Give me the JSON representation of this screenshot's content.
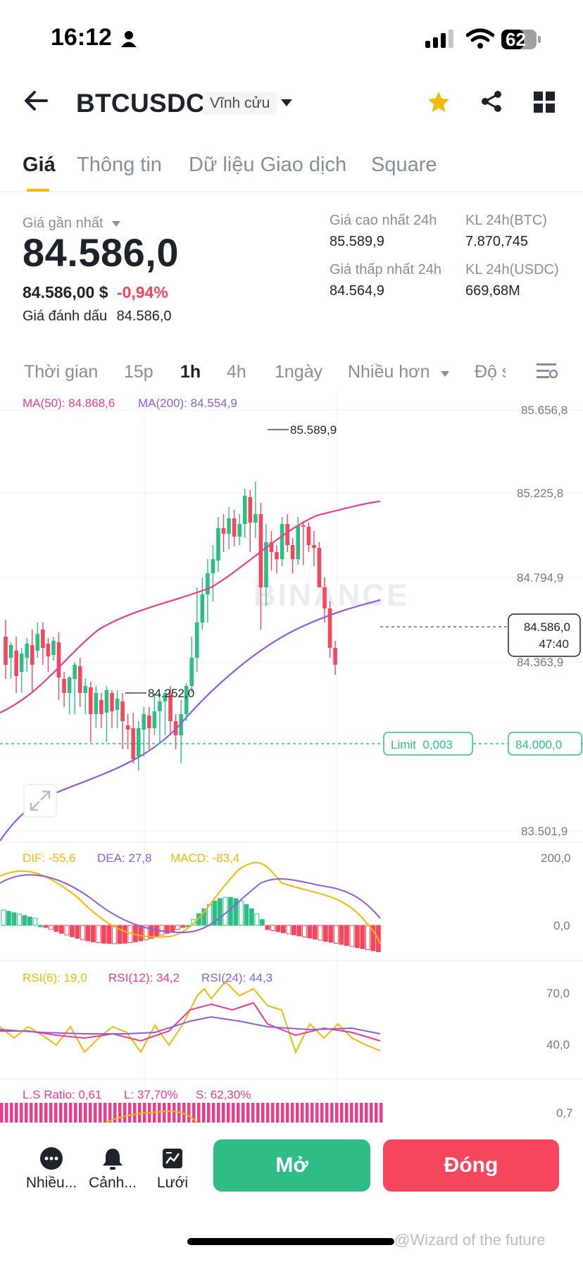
{
  "status_bar": {
    "time": "16:12",
    "battery": "62"
  },
  "header": {
    "symbol": "BTCUSDC",
    "contract_type": "Vĩnh cửu"
  },
  "tabs": [
    {
      "label": "Giá",
      "active": true
    },
    {
      "label": "Thông tin",
      "active": false
    },
    {
      "label": "Dữ liệu Giao dịch",
      "active": false
    },
    {
      "label": "Square",
      "active": false
    }
  ],
  "ticker": {
    "last_price_label": "Giá gần nhất",
    "last_price": "84.586,0",
    "last_price_usd": "84.586,00 $",
    "change_percent": "-0,94%",
    "mark_price_label": "Giá đánh dấu",
    "mark_price": "84.586,0",
    "high_24h_label": "Giá cao nhất 24h",
    "high_24h": "85.589,9",
    "low_24h_label": "Giá thấp nhất 24h",
    "low_24h": "84.564,9",
    "vol_btc_label": "KL 24h(BTC)",
    "vol_btc": "7.870,745",
    "vol_usdc_label": "KL 24h(USDC)",
    "vol_usdc": "669,68M"
  },
  "intervals": [
    {
      "label": "Thời gian",
      "active": false
    },
    {
      "label": "15p",
      "active": false
    },
    {
      "label": "1h",
      "active": true
    },
    {
      "label": "4h",
      "active": false
    },
    {
      "label": "1ngày",
      "active": false
    },
    {
      "label": "Nhiều hơn",
      "active": false
    },
    {
      "label": "Độ s",
      "active": false
    }
  ],
  "chart": {
    "ma50_label": "MA(50): 84.868,6",
    "ma200_label": "MA(200): 84.554,9",
    "price_axis": [
      "85.656,8",
      "85.225,8",
      "84.794,9",
      "84.363,9",
      "83.501,9"
    ],
    "high_marker": "85.589,9",
    "low_marker": "84.252,0",
    "current_price": "84.586,0",
    "countdown": "47:40",
    "limit_label": "Limit  0,003",
    "limit_price": "84.000,0",
    "watermark": "BINANCE",
    "colors": {
      "up": "#2ebd85",
      "down": "#f6465d",
      "ma50": "#e83e8c",
      "ma200": "#8e5ed6",
      "dif": "#f0b90b"
    }
  },
  "macd": {
    "dif_label": "DIF: -55,6",
    "dea_label": "DEA: 27,8",
    "macd_label": "MACD: -83,4",
    "axis": [
      "200,0",
      "0,0"
    ]
  },
  "rsi": {
    "rsi6_label": "RSI(6): 19,0",
    "rsi12_label": "RSI(12): 34,2",
    "rsi24_label": "RSI(24): 44,3",
    "axis": [
      "70,0",
      "40,0"
    ]
  },
  "ls_ratio": {
    "ratio_label": "L.S Ratio: 0,61",
    "long_label": "L: 37,70%",
    "short_label": "S: 62,30%",
    "axis": "0,7"
  },
  "bottom_nav": [
    {
      "label": "Nhiều...",
      "icon": "more-icon"
    },
    {
      "label": "Cảnh...",
      "icon": "bell-icon"
    },
    {
      "label": "Lưới",
      "icon": "grid-bot-icon"
    }
  ],
  "actions": {
    "open": "Mở",
    "close": "Đóng"
  },
  "watermark": "@Wizard of the future"
}
